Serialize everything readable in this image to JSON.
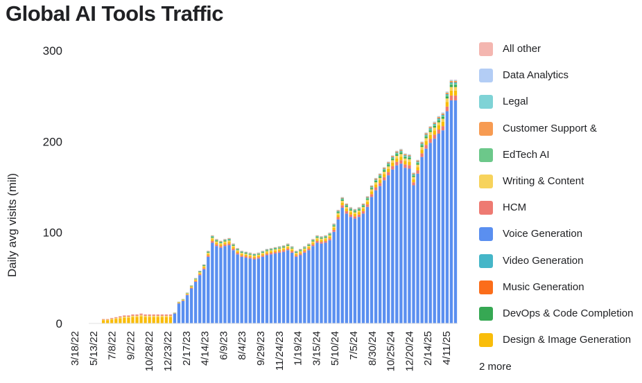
{
  "chart_data": {
    "type": "bar",
    "stacked": true,
    "title": "Global AI Tools Traffic",
    "ylabel": "Daily avg visits (mil)",
    "xlabel": "",
    "ylim": [
      0,
      300
    ],
    "yticks": [
      0,
      100,
      200,
      300
    ],
    "grid": false,
    "legend_position": "right",
    "legend_more": "2 more",
    "x_tick_labels": [
      "3/18/22",
      "5/13/22",
      "7/8/22",
      "9/2/22",
      "10/28/22",
      "12/23/22",
      "2/17/23",
      "4/14/23",
      "6/9/23",
      "8/4/23",
      "9/29/23",
      "11/24/23",
      "1/19/24",
      "3/15/24",
      "5/10/24",
      "7/5/24",
      "8/30/24",
      "10/25/24",
      "12/20/24",
      "2/14/25",
      "4/11/25"
    ],
    "bar_totals": [
      0,
      0,
      0,
      5,
      5,
      6,
      7,
      8,
      9,
      9,
      10,
      10,
      11,
      10,
      10,
      10,
      10,
      10,
      10,
      10,
      12,
      24,
      27,
      34,
      42,
      50,
      58,
      65,
      80,
      97,
      93,
      91,
      93,
      94,
      88,
      83,
      80,
      79,
      78,
      77,
      78,
      80,
      82,
      83,
      84,
      85,
      86,
      88,
      85,
      80,
      82,
      85,
      88,
      93,
      97,
      96,
      97,
      100,
      110,
      125,
      139,
      132,
      128,
      126,
      128,
      132,
      140,
      152,
      160,
      165,
      172,
      178,
      185,
      190,
      192,
      187,
      186,
      166,
      180,
      200,
      210,
      217,
      222,
      228,
      232,
      255,
      268,
      268
    ],
    "series": [
      {
        "name": "All other",
        "color": "#f4b6b0"
      },
      {
        "name": "Data Analytics",
        "color": "#b3cdf5"
      },
      {
        "name": "Legal",
        "color": "#7fd3d6"
      },
      {
        "name": "Customer Support &",
        "color": "#f79b52"
      },
      {
        "name": "EdTech AI",
        "color": "#6cc88a"
      },
      {
        "name": "Writing & Content",
        "color": "#f7d35c"
      },
      {
        "name": "HCM",
        "color": "#ee7a72"
      },
      {
        "name": "Voice Generation",
        "color": "#5a8ff0"
      },
      {
        "name": "Video Generation",
        "color": "#45b6c8"
      },
      {
        "name": "Music Generation",
        "color": "#fb6d1a"
      },
      {
        "name": "DevOps & Code Completion",
        "color": "#36a853"
      },
      {
        "name": "Design & Image Generation",
        "color": "#f9bd0a"
      }
    ]
  }
}
